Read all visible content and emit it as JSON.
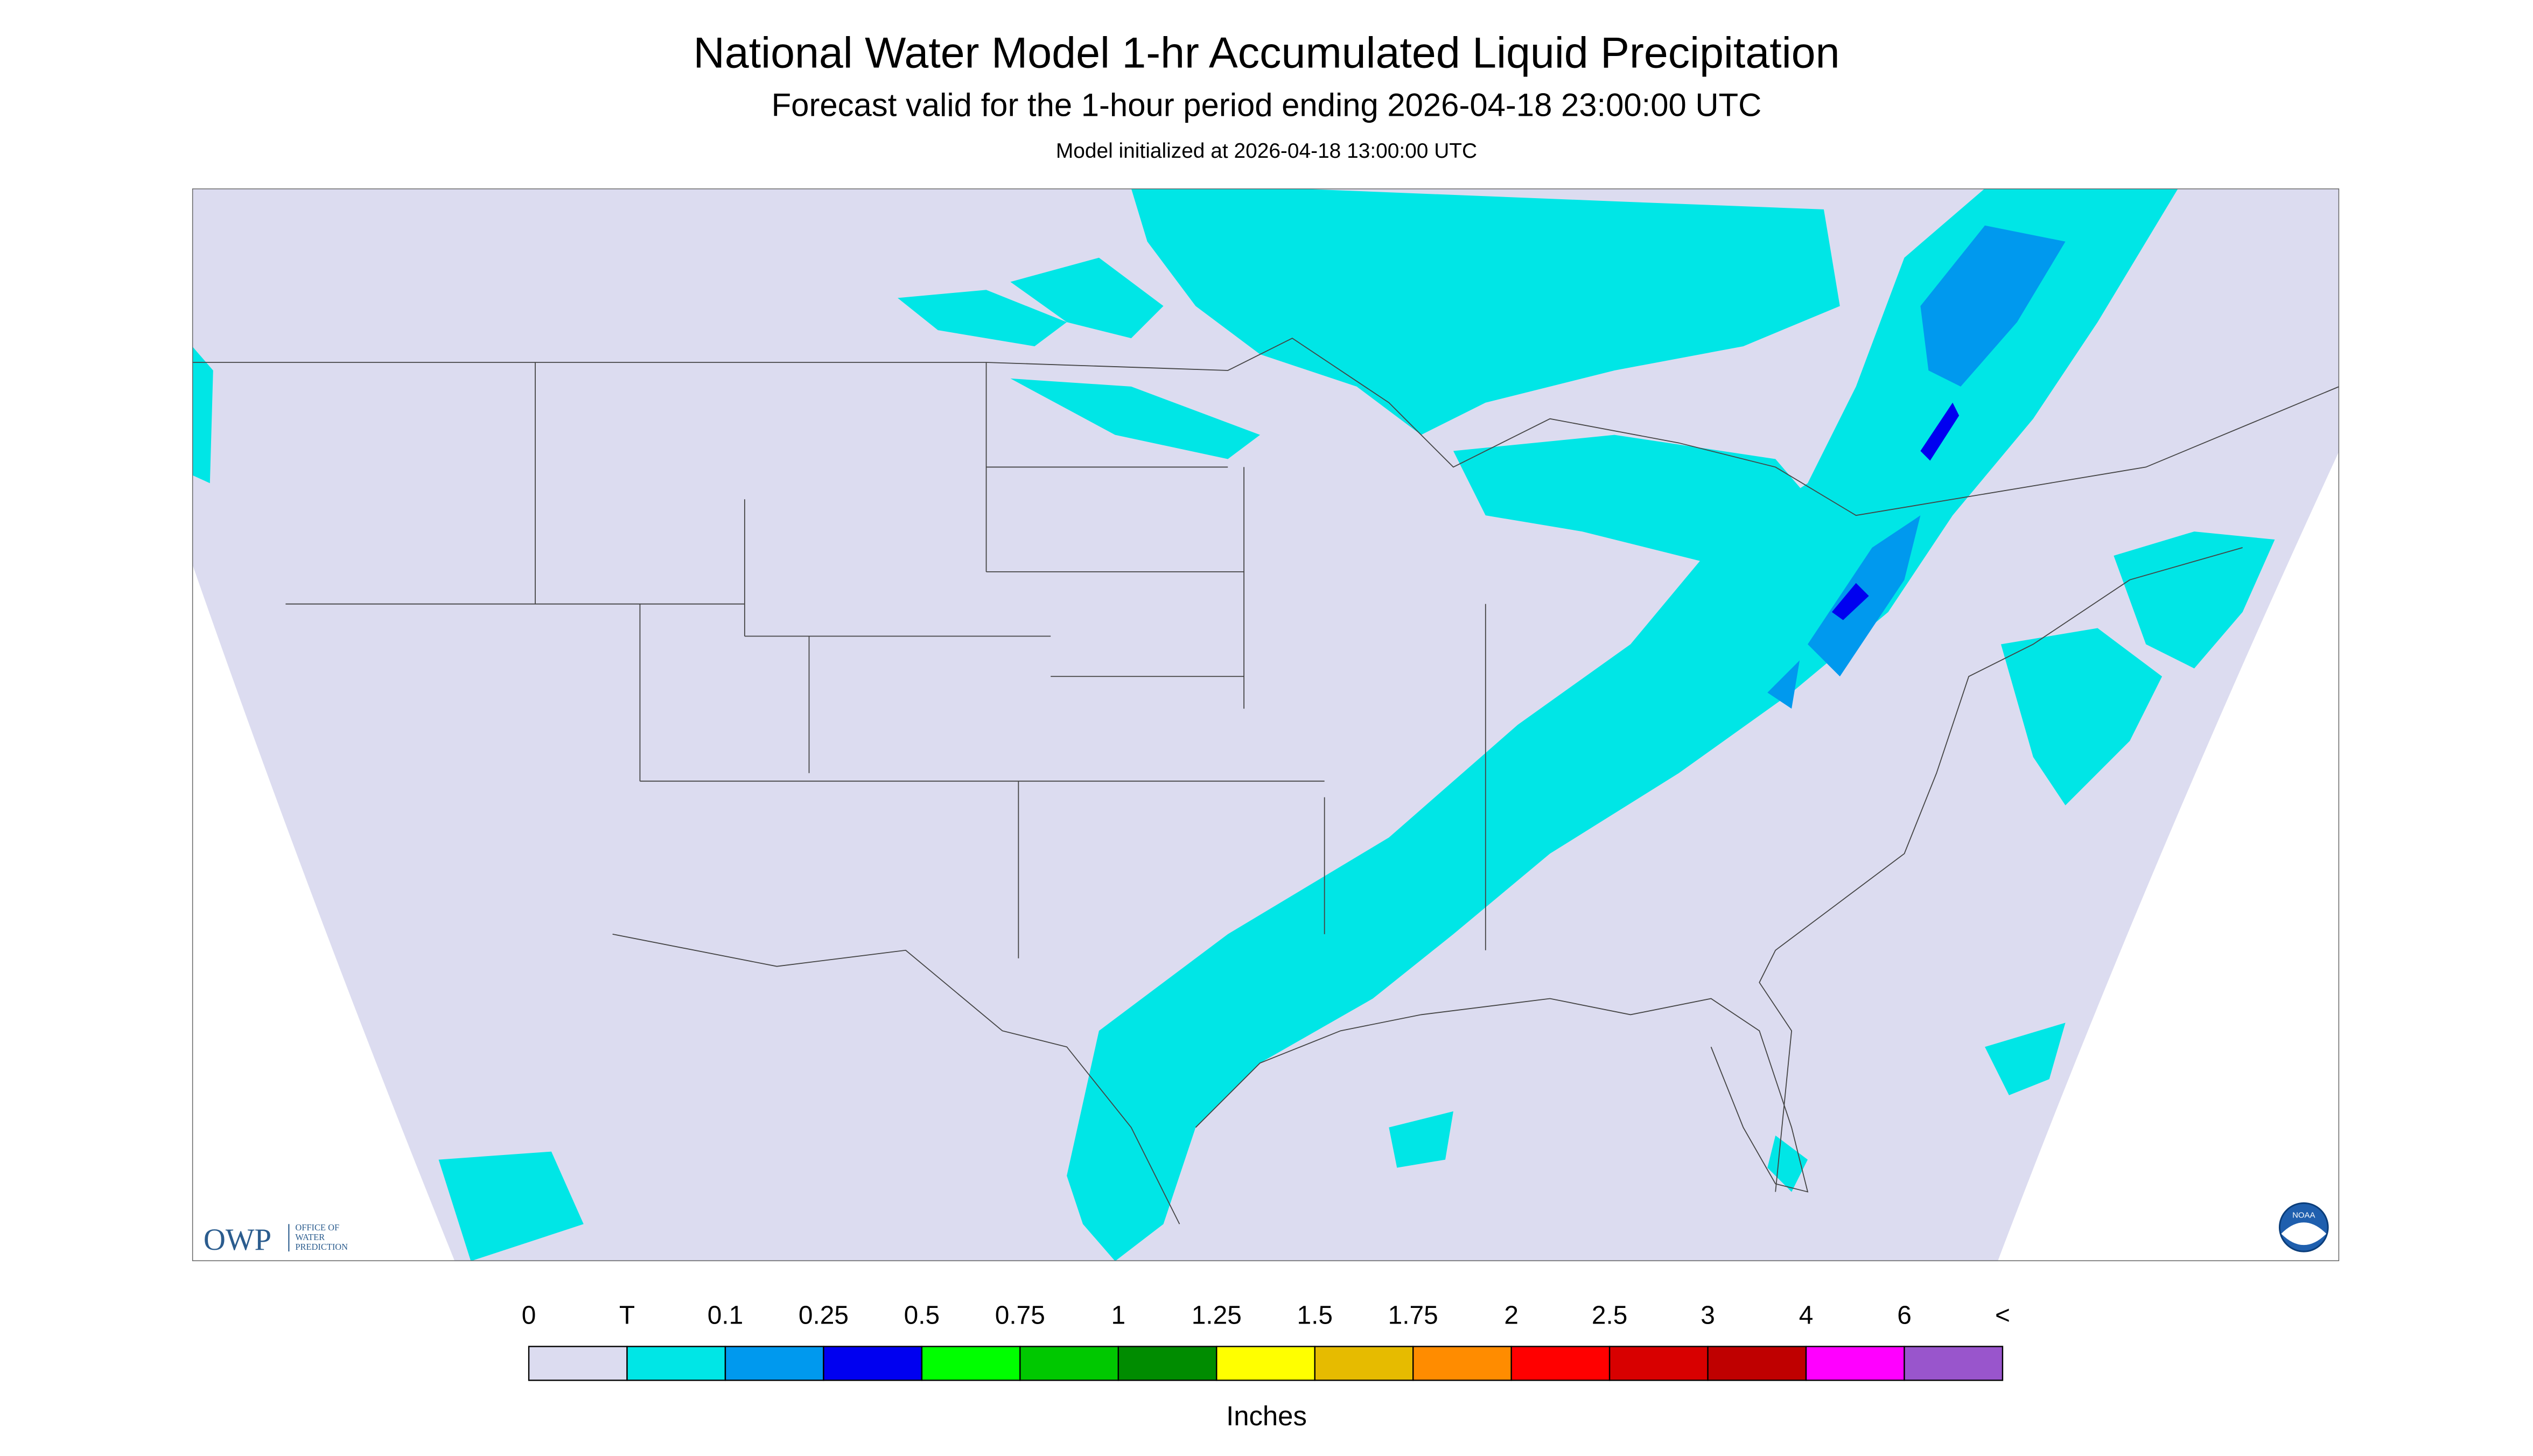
{
  "header": {
    "title": "National Water Model 1-hr Accumulated Liquid Precipitation",
    "subtitle": "Forecast valid for the 1-hour period ending 2026-04-18 23:00:00 UTC",
    "note": "Model initialized at 2026-04-18 13:00:00 UTC"
  },
  "legend": {
    "labels": [
      "0",
      "T",
      "0.1",
      "0.25",
      "0.5",
      "0.75",
      "1",
      "1.25",
      "1.5",
      "1.75",
      "2",
      "2.5",
      "3",
      "4",
      "6",
      "<"
    ],
    "colors": [
      "#dcdcf0",
      "#00e6e6",
      "#0099ee",
      "#0000f0",
      "#00ff00",
      "#00c800",
      "#008c00",
      "#ffff00",
      "#e6bb00",
      "#ff8c00",
      "#ff0000",
      "#d80000",
      "#bf0000",
      "#ff00ff",
      "#9955cc"
    ],
    "unit": "Inches"
  },
  "logos": {
    "owp": {
      "name": "OWP",
      "lines": [
        "OFFICE OF",
        "WATER",
        "PREDICTION"
      ]
    },
    "noaa": "NOAA"
  }
}
